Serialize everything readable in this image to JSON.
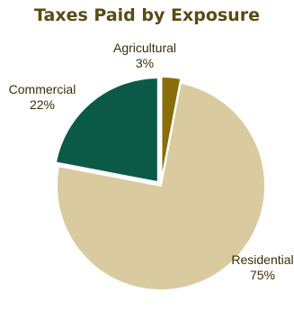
{
  "chart_data": {
    "type": "pie",
    "title": "Taxes Paid by Exposure",
    "slices": [
      {
        "label": "Agricultural",
        "value": 3,
        "value_label": "3%",
        "color": "#8a6d0b"
      },
      {
        "label": "Residential",
        "value": 75,
        "value_label": "75%",
        "color": "#d9cb9f"
      },
      {
        "label": "Commercial",
        "value": 22,
        "value_label": "22%",
        "color": "#0b5a48"
      }
    ],
    "exploded_slices": [
      "Agricultural",
      "Commercial"
    ],
    "legend": "none"
  }
}
